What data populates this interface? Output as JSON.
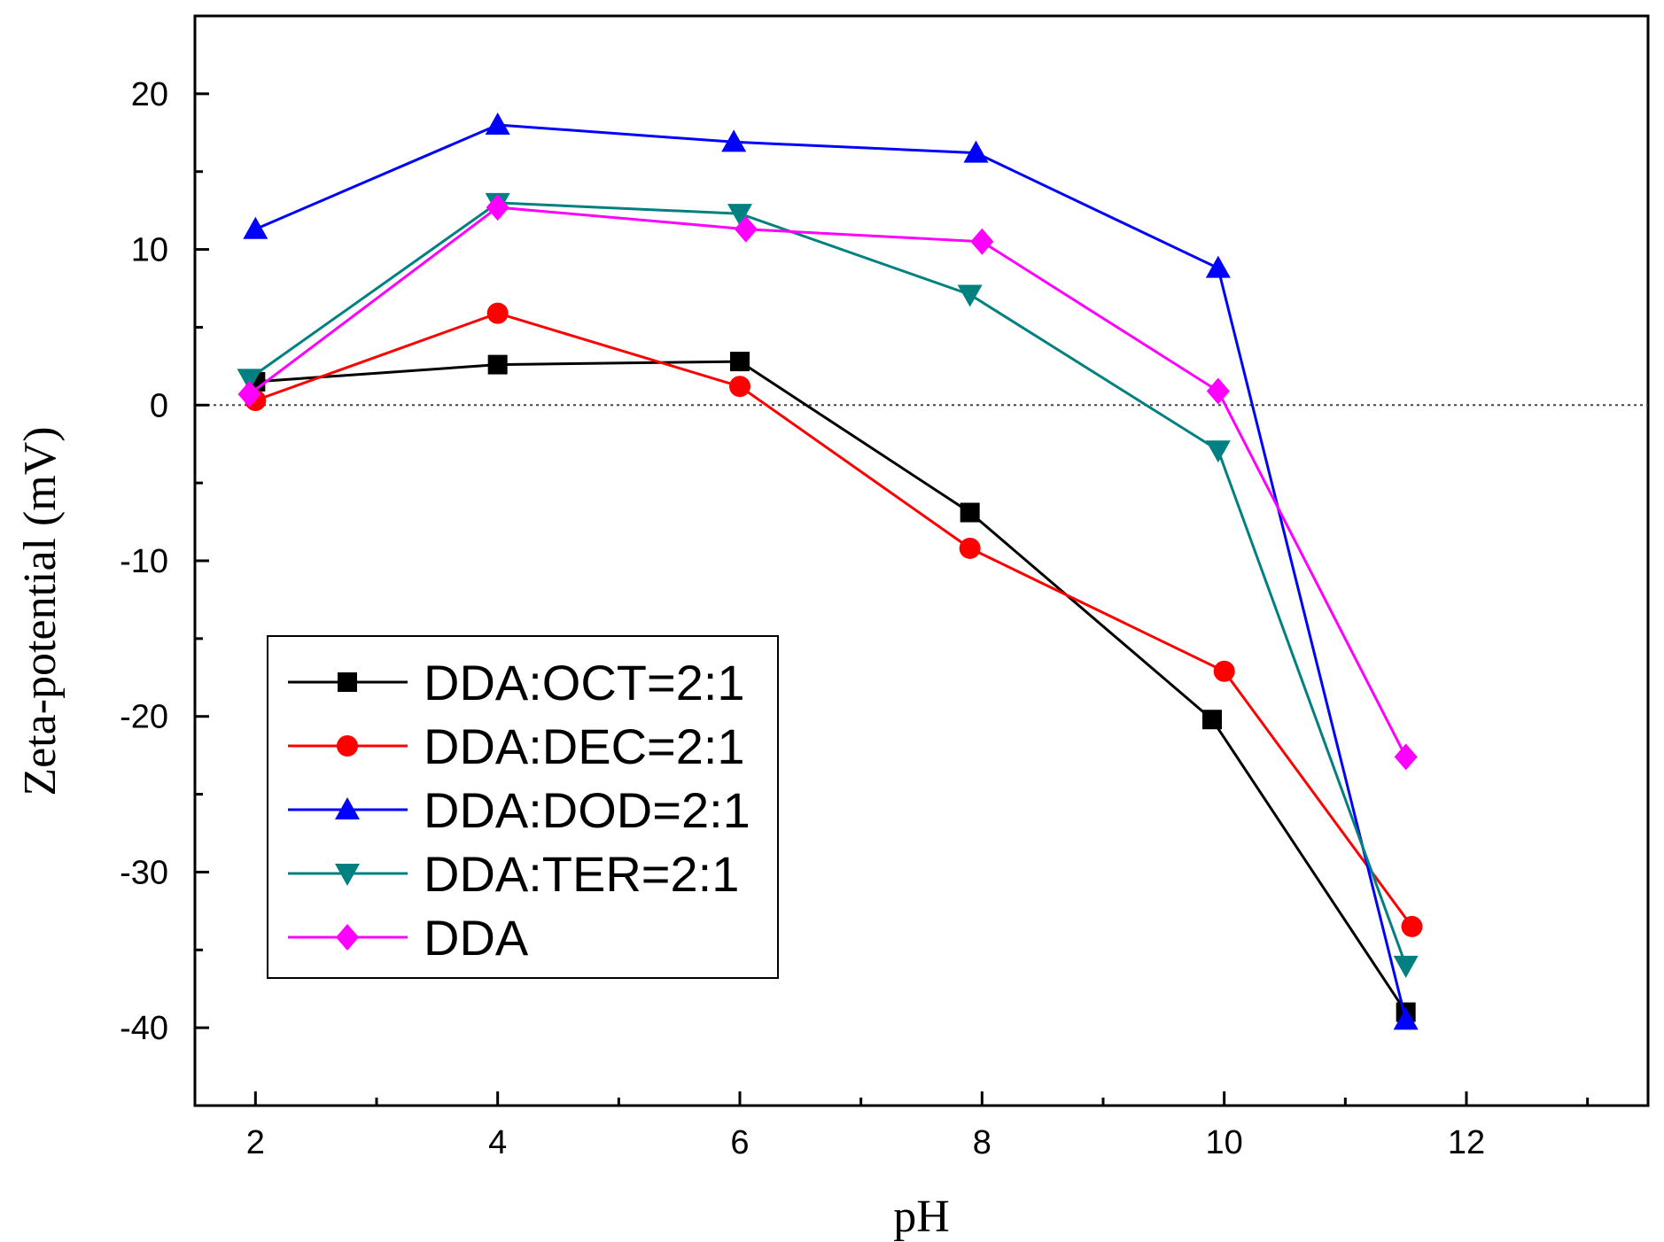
{
  "chart_data": {
    "type": "line",
    "title": "",
    "xlabel": "pH",
    "ylabel": "Zeta-potential (mV)",
    "xlim": [
      1.5,
      13.5
    ],
    "ylim": [
      -45,
      25
    ],
    "x_ticks": [
      "2",
      "4",
      "6",
      "8",
      "10",
      "12"
    ],
    "x_tick_values": [
      2,
      4,
      6,
      8,
      10,
      12
    ],
    "x_minor_tick_values": [
      3,
      5,
      7,
      9,
      11,
      13
    ],
    "y_ticks": [
      "20",
      "10",
      "0",
      "-10",
      "-20",
      "-30",
      "-40"
    ],
    "y_tick_values": [
      20,
      10,
      0,
      -10,
      -20,
      -30,
      -40
    ],
    "y_minor_tick_values": [
      15,
      5,
      -5,
      -15,
      -25,
      -35
    ],
    "reference_line": 0,
    "legend_position": "lower-left",
    "series": [
      {
        "name": "DDA:OCT=2:1",
        "color": "#000000",
        "marker": "square",
        "x": [
          2,
          4,
          6,
          7.9,
          9.9,
          11.5
        ],
        "values": [
          1.5,
          2.6,
          2.8,
          -6.9,
          -20.2,
          -39.0
        ]
      },
      {
        "name": "DDA:DEC=2:1",
        "color": "#ff0000",
        "marker": "circle",
        "x": [
          2,
          4,
          6,
          7.9,
          10,
          11.55
        ],
        "values": [
          0.3,
          5.9,
          1.2,
          -9.2,
          -17.1,
          -33.5
        ]
      },
      {
        "name": "DDA:DOD=2:1",
        "color": "#0000ff",
        "marker": "triangle-up",
        "x": [
          2,
          4,
          5.95,
          7.95,
          9.95,
          11.5
        ],
        "values": [
          11.3,
          18.0,
          16.9,
          16.2,
          8.8,
          -39.5
        ]
      },
      {
        "name": "DDA:TER=2:1",
        "color": "#008080",
        "marker": "triangle-down",
        "x": [
          1.95,
          4,
          6,
          7.9,
          9.95,
          11.5
        ],
        "values": [
          1.7,
          13.0,
          12.3,
          7.1,
          -2.9,
          -36.0
        ]
      },
      {
        "name": "DDA",
        "color": "#ff00ff",
        "marker": "diamond",
        "x": [
          1.95,
          4,
          6.05,
          8.0,
          9.95,
          11.5
        ],
        "values": [
          0.7,
          12.7,
          11.3,
          10.5,
          0.9,
          -22.6
        ]
      }
    ]
  }
}
